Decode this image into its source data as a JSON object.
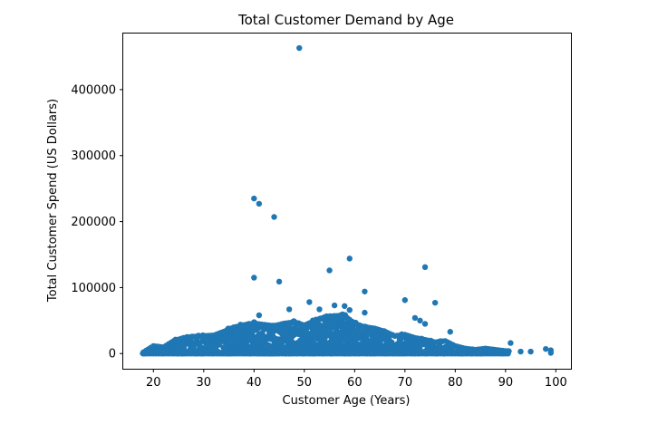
{
  "chart_data": {
    "type": "scatter",
    "title": "Total Customer Demand by Age",
    "xlabel": "Customer Age (Years)",
    "ylabel": "Total Customer Spend (US Dollars)",
    "xlim": [
      14,
      103
    ],
    "ylim": [
      -23000,
      485000
    ],
    "xticks": [
      20,
      30,
      40,
      50,
      60,
      70,
      80,
      90,
      100
    ],
    "yticks": [
      0,
      100000,
      200000,
      300000,
      400000
    ],
    "grid": false,
    "marker_color": "#1f77b4",
    "notable_points": [
      {
        "x": 49,
        "y": 463000
      },
      {
        "x": 40,
        "y": 235000
      },
      {
        "x": 41,
        "y": 227000
      },
      {
        "x": 44,
        "y": 207000
      },
      {
        "x": 59,
        "y": 144000
      },
      {
        "x": 74,
        "y": 131000
      },
      {
        "x": 55,
        "y": 126000
      },
      {
        "x": 40,
        "y": 115000
      },
      {
        "x": 45,
        "y": 109000
      },
      {
        "x": 62,
        "y": 94000
      },
      {
        "x": 70,
        "y": 81000
      },
      {
        "x": 51,
        "y": 78000
      },
      {
        "x": 76,
        "y": 77000
      },
      {
        "x": 56,
        "y": 73000
      },
      {
        "x": 58,
        "y": 72000
      },
      {
        "x": 47,
        "y": 67000
      },
      {
        "x": 53,
        "y": 67000
      },
      {
        "x": 59,
        "y": 66000
      },
      {
        "x": 62,
        "y": 62000
      },
      {
        "x": 41,
        "y": 58000
      },
      {
        "x": 72,
        "y": 54000
      },
      {
        "x": 73,
        "y": 50000
      },
      {
        "x": 74,
        "y": 45000
      },
      {
        "x": 79,
        "y": 33000
      },
      {
        "x": 91,
        "y": 16000
      },
      {
        "x": 98,
        "y": 7000
      },
      {
        "x": 99,
        "y": 5000
      },
      {
        "x": 93,
        "y": 3000
      },
      {
        "x": 95,
        "y": 3000
      },
      {
        "x": 99,
        "y": 1000
      },
      {
        "x": 18,
        "y": 1000
      }
    ],
    "dense_band": [
      {
        "x": 18,
        "y_max": 2000
      },
      {
        "x": 20,
        "y_max": 12000
      },
      {
        "x": 22,
        "y_max": 10000
      },
      {
        "x": 24,
        "y_max": 20000
      },
      {
        "x": 26,
        "y_max": 25000
      },
      {
        "x": 28,
        "y_max": 27000
      },
      {
        "x": 30,
        "y_max": 28000
      },
      {
        "x": 32,
        "y_max": 29000
      },
      {
        "x": 34,
        "y_max": 35000
      },
      {
        "x": 36,
        "y_max": 42000
      },
      {
        "x": 38,
        "y_max": 45000
      },
      {
        "x": 40,
        "y_max": 48000
      },
      {
        "x": 42,
        "y_max": 46000
      },
      {
        "x": 44,
        "y_max": 44000
      },
      {
        "x": 46,
        "y_max": 48000
      },
      {
        "x": 48,
        "y_max": 50000
      },
      {
        "x": 50,
        "y_max": 45000
      },
      {
        "x": 52,
        "y_max": 52000
      },
      {
        "x": 54,
        "y_max": 58000
      },
      {
        "x": 56,
        "y_max": 60000
      },
      {
        "x": 58,
        "y_max": 60000
      },
      {
        "x": 60,
        "y_max": 48000
      },
      {
        "x": 62,
        "y_max": 42000
      },
      {
        "x": 64,
        "y_max": 40000
      },
      {
        "x": 66,
        "y_max": 35000
      },
      {
        "x": 68,
        "y_max": 28000
      },
      {
        "x": 70,
        "y_max": 30000
      },
      {
        "x": 72,
        "y_max": 25000
      },
      {
        "x": 74,
        "y_max": 22000
      },
      {
        "x": 76,
        "y_max": 18000
      },
      {
        "x": 78,
        "y_max": 20000
      },
      {
        "x": 80,
        "y_max": 12000
      },
      {
        "x": 82,
        "y_max": 8000
      },
      {
        "x": 84,
        "y_max": 6000
      },
      {
        "x": 86,
        "y_max": 8000
      },
      {
        "x": 88,
        "y_max": 6000
      },
      {
        "x": 90,
        "y_max": 4000
      }
    ]
  }
}
